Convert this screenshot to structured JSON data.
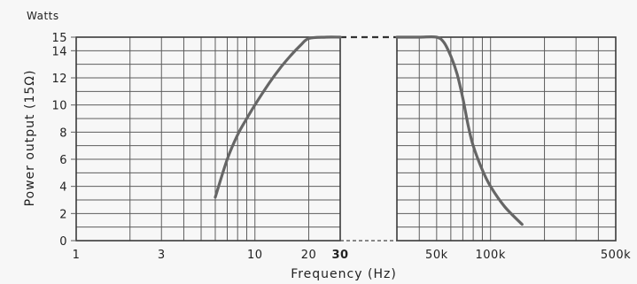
{
  "chart_data": {
    "type": "line",
    "ylabel": "Power output (15Ω)",
    "yunit": "Watts",
    "xlabel": "Frequency (Hz)",
    "ylim": [
      0,
      15
    ],
    "xscale": "log",
    "grid": true,
    "yticks": [
      "0",
      "2",
      "4",
      "6",
      "8",
      "10",
      "12",
      "14",
      "15"
    ],
    "ytick_values": [
      0,
      2,
      4,
      6,
      8,
      10,
      12,
      14,
      15
    ],
    "panels": [
      {
        "xlim": [
          1,
          30
        ],
        "xticks": [
          {
            "value": 1,
            "label": "1"
          },
          {
            "value": 3,
            "label": "3"
          },
          {
            "value": 10,
            "label": "10"
          },
          {
            "value": 20,
            "label": "20"
          },
          {
            "value": 30,
            "label": "30",
            "bold": true
          }
        ],
        "series": {
          "x": [
            6,
            7,
            8,
            9,
            10,
            12,
            14,
            16,
            18,
            20,
            25,
            30
          ],
          "y": [
            3.2,
            6.0,
            7.8,
            9.0,
            10.0,
            11.6,
            12.8,
            13.7,
            14.4,
            14.9,
            15,
            15
          ]
        }
      },
      {
        "xlim": [
          30000,
          500000
        ],
        "xticks": [
          {
            "value": 50000,
            "label": "50k"
          },
          {
            "value": 100000,
            "label": "100k"
          },
          {
            "value": 500000,
            "label": "500k"
          }
        ],
        "series": {
          "x": [
            30000,
            40000,
            50000,
            55000,
            60000,
            65000,
            70000,
            75000,
            80000,
            90000,
            100000,
            120000,
            150000
          ],
          "y": [
            15,
            15,
            15,
            14.6,
            13.6,
            12.3,
            10.5,
            8.5,
            7.0,
            5.2,
            4.0,
            2.5,
            1.2
          ]
        }
      }
    ]
  }
}
